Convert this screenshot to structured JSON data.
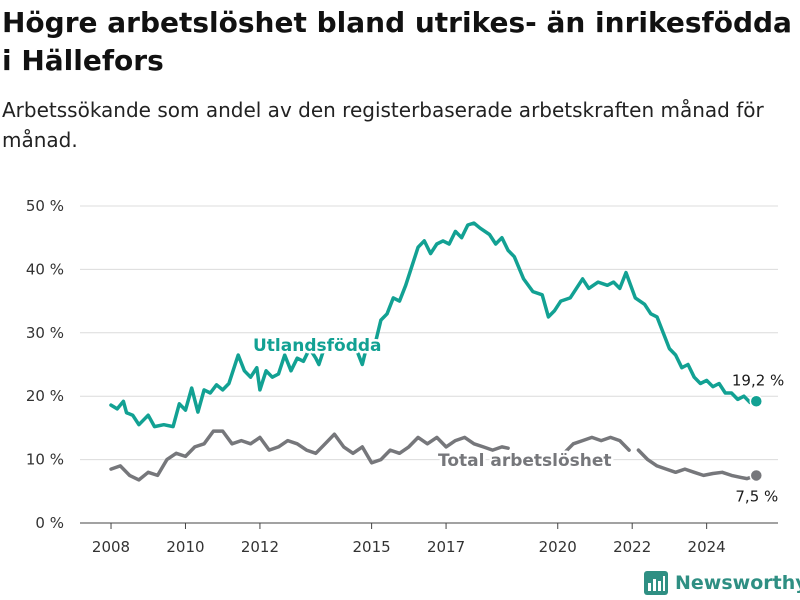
{
  "title": "Högre arbetslöshet bland utrikes- än inrikesfödda i Hällefors",
  "subtitle": "Arbetssökande som andel av den registerbaserade arbetskraften månad för månad.",
  "brand": "Newsworthy",
  "colors": {
    "foreign": "#12a193",
    "total": "#76777b",
    "grid": "#dcdcdc",
    "axis": "#333333"
  },
  "chart_data": {
    "type": "line",
    "x_ticks": [
      "2008",
      "2010",
      "2012",
      "2015",
      "2017",
      "2020",
      "2022",
      "2024"
    ],
    "y_ticks": [
      "0 %",
      "10 %",
      "20 %",
      "30 %",
      "40 %",
      "50 %"
    ],
    "ylim": [
      0,
      50
    ],
    "xlim": [
      "2007-03",
      "2025-12"
    ],
    "series": [
      {
        "name": "Utlandsfödda",
        "end_label": "19,2 %",
        "points": [
          [
            "2008-01",
            18.6
          ],
          [
            "2008-03",
            18.0
          ],
          [
            "2008-05",
            19.2
          ],
          [
            "2008-06",
            17.4
          ],
          [
            "2008-08",
            17.0
          ],
          [
            "2008-10",
            15.5
          ],
          [
            "2009-01",
            17.0
          ],
          [
            "2009-03",
            15.2
          ],
          [
            "2009-06",
            15.5
          ],
          [
            "2009-09",
            15.2
          ],
          [
            "2009-11",
            18.8
          ],
          [
            "2010-01",
            17.8
          ],
          [
            "2010-03",
            21.3
          ],
          [
            "2010-05",
            17.5
          ],
          [
            "2010-07",
            21.0
          ],
          [
            "2010-09",
            20.5
          ],
          [
            "2010-11",
            21.8
          ],
          [
            "2011-01",
            21.0
          ],
          [
            "2011-03",
            22.0
          ],
          [
            "2011-06",
            26.5
          ],
          [
            "2011-08",
            24.0
          ],
          [
            "2011-10",
            23.0
          ],
          [
            "2011-12",
            24.5
          ],
          [
            "2012-01",
            21.0
          ],
          [
            "2012-03",
            24.0
          ],
          [
            "2012-05",
            23.0
          ],
          [
            "2012-07",
            23.5
          ],
          [
            "2012-09",
            26.5
          ],
          [
            "2012-11",
            24.0
          ],
          [
            "2013-01",
            26.0
          ],
          [
            "2013-03",
            25.5
          ],
          [
            "2013-05",
            27.5
          ],
          [
            "2013-07",
            26.0
          ],
          [
            "2013-08",
            25.0
          ],
          [
            "2013-10",
            28.0
          ]
        ],
        "points_b": [
          [
            "2014-08",
            27.5
          ],
          [
            "2014-10",
            25.0
          ],
          [
            "2014-12",
            29.0
          ],
          [
            "2015-02",
            28.0
          ],
          [
            "2015-04",
            32.0
          ],
          [
            "2015-06",
            33.0
          ],
          [
            "2015-08",
            35.5
          ],
          [
            "2015-10",
            35.0
          ],
          [
            "2015-12",
            37.5
          ],
          [
            "2016-02",
            40.5
          ],
          [
            "2016-04",
            43.5
          ],
          [
            "2016-06",
            44.5
          ],
          [
            "2016-08",
            42.5
          ],
          [
            "2016-10",
            44.0
          ],
          [
            "2016-12",
            44.5
          ],
          [
            "2017-02",
            44.0
          ],
          [
            "2017-04",
            46.0
          ],
          [
            "2017-06",
            45.0
          ],
          [
            "2017-08",
            47.0
          ],
          [
            "2017-10",
            47.3
          ],
          [
            "2017-12",
            46.5
          ],
          [
            "2018-03",
            45.5
          ],
          [
            "2018-05",
            44.0
          ],
          [
            "2018-07",
            45.0
          ],
          [
            "2018-09",
            43.0
          ],
          [
            "2018-11",
            42.0
          ],
          [
            "2019-02",
            38.5
          ],
          [
            "2019-05",
            36.5
          ],
          [
            "2019-08",
            36.0
          ],
          [
            "2019-10",
            32.5
          ],
          [
            "2019-12",
            33.5
          ],
          [
            "2020-02",
            35.0
          ],
          [
            "2020-05",
            35.5
          ],
          [
            "2020-07",
            37.0
          ],
          [
            "2020-09",
            38.5
          ],
          [
            "2020-11",
            37.0
          ],
          [
            "2021-02",
            38.0
          ],
          [
            "2021-05",
            37.5
          ],
          [
            "2021-07",
            38.0
          ],
          [
            "2021-09",
            37.0
          ],
          [
            "2021-11",
            39.5
          ],
          [
            "2022-02",
            35.5
          ],
          [
            "2022-05",
            34.5
          ],
          [
            "2022-07",
            33.0
          ],
          [
            "2022-09",
            32.5
          ],
          [
            "2022-11",
            30.0
          ],
          [
            "2023-01",
            27.5
          ],
          [
            "2023-03",
            26.5
          ],
          [
            "2023-05",
            24.5
          ],
          [
            "2023-07",
            25.0
          ],
          [
            "2023-09",
            23.0
          ],
          [
            "2023-11",
            22.0
          ],
          [
            "2024-01",
            22.5
          ],
          [
            "2024-03",
            21.5
          ],
          [
            "2024-05",
            22.0
          ],
          [
            "2024-07",
            20.5
          ],
          [
            "2024-09",
            20.5
          ],
          [
            "2024-11",
            19.5
          ],
          [
            "2025-01",
            20.0
          ],
          [
            "2025-03",
            19.0
          ],
          [
            "2025-05",
            19.2
          ]
        ]
      },
      {
        "name": "Total arbetslöshet",
        "end_label": "7,5 %",
        "points": [
          [
            "2008-01",
            8.5
          ],
          [
            "2008-04",
            9.0
          ],
          [
            "2008-07",
            7.5
          ],
          [
            "2008-10",
            6.8
          ],
          [
            "2009-01",
            8.0
          ],
          [
            "2009-04",
            7.5
          ],
          [
            "2009-07",
            10.0
          ],
          [
            "2009-10",
            11.0
          ],
          [
            "2010-01",
            10.5
          ],
          [
            "2010-04",
            12.0
          ],
          [
            "2010-07",
            12.5
          ],
          [
            "2010-10",
            14.5
          ],
          [
            "2011-01",
            14.5
          ],
          [
            "2011-04",
            12.5
          ],
          [
            "2011-07",
            13.0
          ],
          [
            "2011-10",
            12.5
          ],
          [
            "2012-01",
            13.5
          ],
          [
            "2012-04",
            11.5
          ],
          [
            "2012-07",
            12.0
          ],
          [
            "2012-10",
            13.0
          ],
          [
            "2013-01",
            12.5
          ],
          [
            "2013-04",
            11.5
          ],
          [
            "2013-07",
            11.0
          ],
          [
            "2013-10",
            12.5
          ],
          [
            "2014-01",
            14.0
          ],
          [
            "2014-04",
            12.0
          ],
          [
            "2014-07",
            11.0
          ],
          [
            "2014-10",
            12.0
          ],
          [
            "2015-01",
            9.5
          ],
          [
            "2015-04",
            10.0
          ],
          [
            "2015-07",
            11.5
          ],
          [
            "2015-10",
            11.0
          ],
          [
            "2016-01",
            12.0
          ],
          [
            "2016-04",
            13.5
          ],
          [
            "2016-07",
            12.5
          ],
          [
            "2016-10",
            13.5
          ],
          [
            "2017-01",
            12.0
          ],
          [
            "2017-04",
            13.0
          ],
          [
            "2017-07",
            13.5
          ],
          [
            "2017-10",
            12.5
          ],
          [
            "2018-01",
            12.0
          ],
          [
            "2018-04",
            11.5
          ],
          [
            "2018-07",
            12.0
          ],
          [
            "2018-09",
            11.8
          ]
        ],
        "points_b": [
          [
            "2020-03",
            11.0
          ],
          [
            "2020-06",
            12.5
          ],
          [
            "2020-09",
            13.0
          ],
          [
            "2020-12",
            13.5
          ],
          [
            "2021-03",
            13.0
          ],
          [
            "2021-06",
            13.5
          ],
          [
            "2021-09",
            13.0
          ],
          [
            "2021-12",
            11.5
          ]
        ],
        "points_c": [
          [
            "2022-03",
            11.5
          ],
          [
            "2022-06",
            10.0
          ],
          [
            "2022-09",
            9.0
          ],
          [
            "2022-12",
            8.5
          ],
          [
            "2023-03",
            8.0
          ],
          [
            "2023-06",
            8.5
          ],
          [
            "2023-09",
            8.0
          ],
          [
            "2023-12",
            7.5
          ],
          [
            "2024-03",
            7.8
          ],
          [
            "2024-06",
            8.0
          ],
          [
            "2024-09",
            7.5
          ],
          [
            "2024-12",
            7.2
          ],
          [
            "2025-02",
            7.0
          ],
          [
            "2025-05",
            7.5
          ]
        ]
      }
    ]
  }
}
